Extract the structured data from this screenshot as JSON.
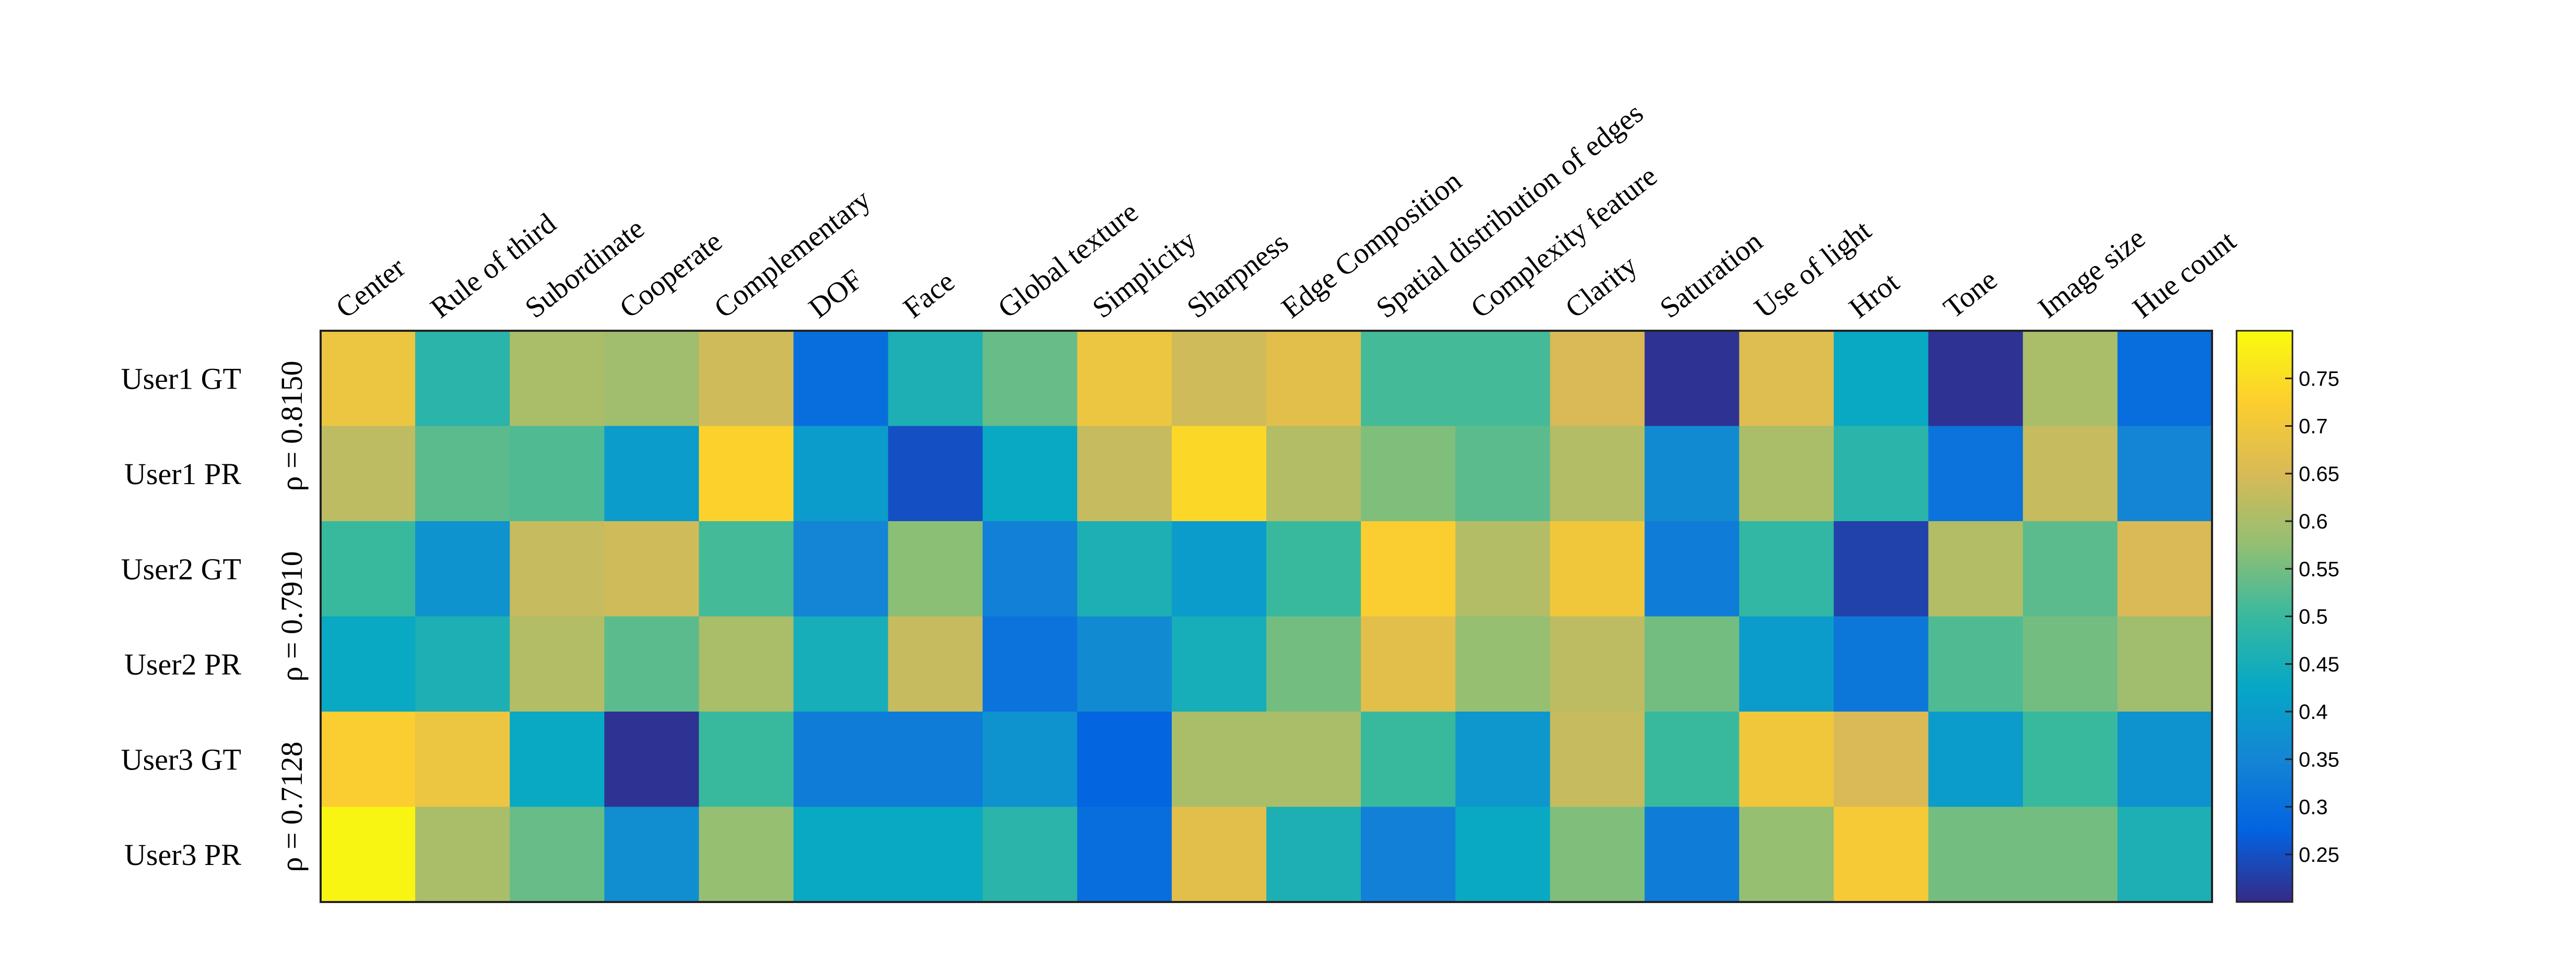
{
  "chart_data": {
    "type": "heatmap",
    "title": "",
    "columns": [
      "Center",
      "Rule of third",
      "Subordinate",
      "Cooperate",
      "Complementary",
      "DOF",
      "Face",
      "Global texture",
      "Simplicity",
      "Sharpness",
      "Edge Composition",
      "Spatial distribution of edges",
      "Complexity feature",
      "Clarity",
      "Saturation",
      "Use of light",
      "Hrot",
      "Tone",
      "Image size",
      "Hue count"
    ],
    "rows": [
      "User1 GT",
      "User1 PR",
      "User2 GT",
      "User2 PR",
      "User3 GT",
      "User3 PR"
    ],
    "values": [
      [
        0.69,
        0.48,
        0.6,
        0.59,
        0.64,
        0.3,
        0.46,
        0.54,
        0.69,
        0.64,
        0.67,
        0.51,
        0.51,
        0.65,
        0.21,
        0.66,
        0.43,
        0.21,
        0.6,
        0.3
      ],
      [
        0.62,
        0.53,
        0.52,
        0.4,
        0.73,
        0.4,
        0.25,
        0.43,
        0.63,
        0.74,
        0.61,
        0.56,
        0.53,
        0.61,
        0.36,
        0.6,
        0.48,
        0.31,
        0.63,
        0.35
      ],
      [
        0.5,
        0.38,
        0.63,
        0.64,
        0.51,
        0.35,
        0.57,
        0.34,
        0.46,
        0.4,
        0.5,
        0.72,
        0.61,
        0.7,
        0.33,
        0.49,
        0.23,
        0.61,
        0.53,
        0.65
      ],
      [
        0.43,
        0.46,
        0.61,
        0.53,
        0.6,
        0.45,
        0.63,
        0.31,
        0.36,
        0.45,
        0.55,
        0.67,
        0.58,
        0.62,
        0.55,
        0.4,
        0.32,
        0.52,
        0.55,
        0.59
      ],
      [
        0.72,
        0.69,
        0.43,
        0.21,
        0.5,
        0.33,
        0.33,
        0.38,
        0.28,
        0.6,
        0.6,
        0.5,
        0.39,
        0.63,
        0.5,
        0.7,
        0.65,
        0.4,
        0.5,
        0.38
      ],
      [
        0.79,
        0.6,
        0.54,
        0.37,
        0.58,
        0.43,
        0.43,
        0.48,
        0.3,
        0.67,
        0.46,
        0.34,
        0.43,
        0.56,
        0.33,
        0.58,
        0.71,
        0.55,
        0.55,
        0.46
      ]
    ],
    "rho_labels": [
      "ρ = 0.8150",
      "ρ = 0.7910",
      "ρ = 0.7128"
    ],
    "colorbar": {
      "range": [
        0.2,
        0.8
      ],
      "ticks": [
        0.25,
        0.3,
        0.35,
        0.4,
        0.45,
        0.5,
        0.55,
        0.6,
        0.65,
        0.7,
        0.75
      ],
      "tick_labels": [
        "0.25",
        "0.3",
        "0.35",
        "0.4",
        "0.45",
        "0.5",
        "0.55",
        "0.6",
        "0.65",
        "0.7",
        "0.75"
      ],
      "colormap": "parula"
    },
    "colors": {
      "parula": [
        "#352a87",
        "#0363e1",
        "#1485d4",
        "#06a7c6",
        "#38b99e",
        "#92bf73",
        "#d9ba56",
        "#fcce2e",
        "#f9fb0e"
      ]
    }
  }
}
